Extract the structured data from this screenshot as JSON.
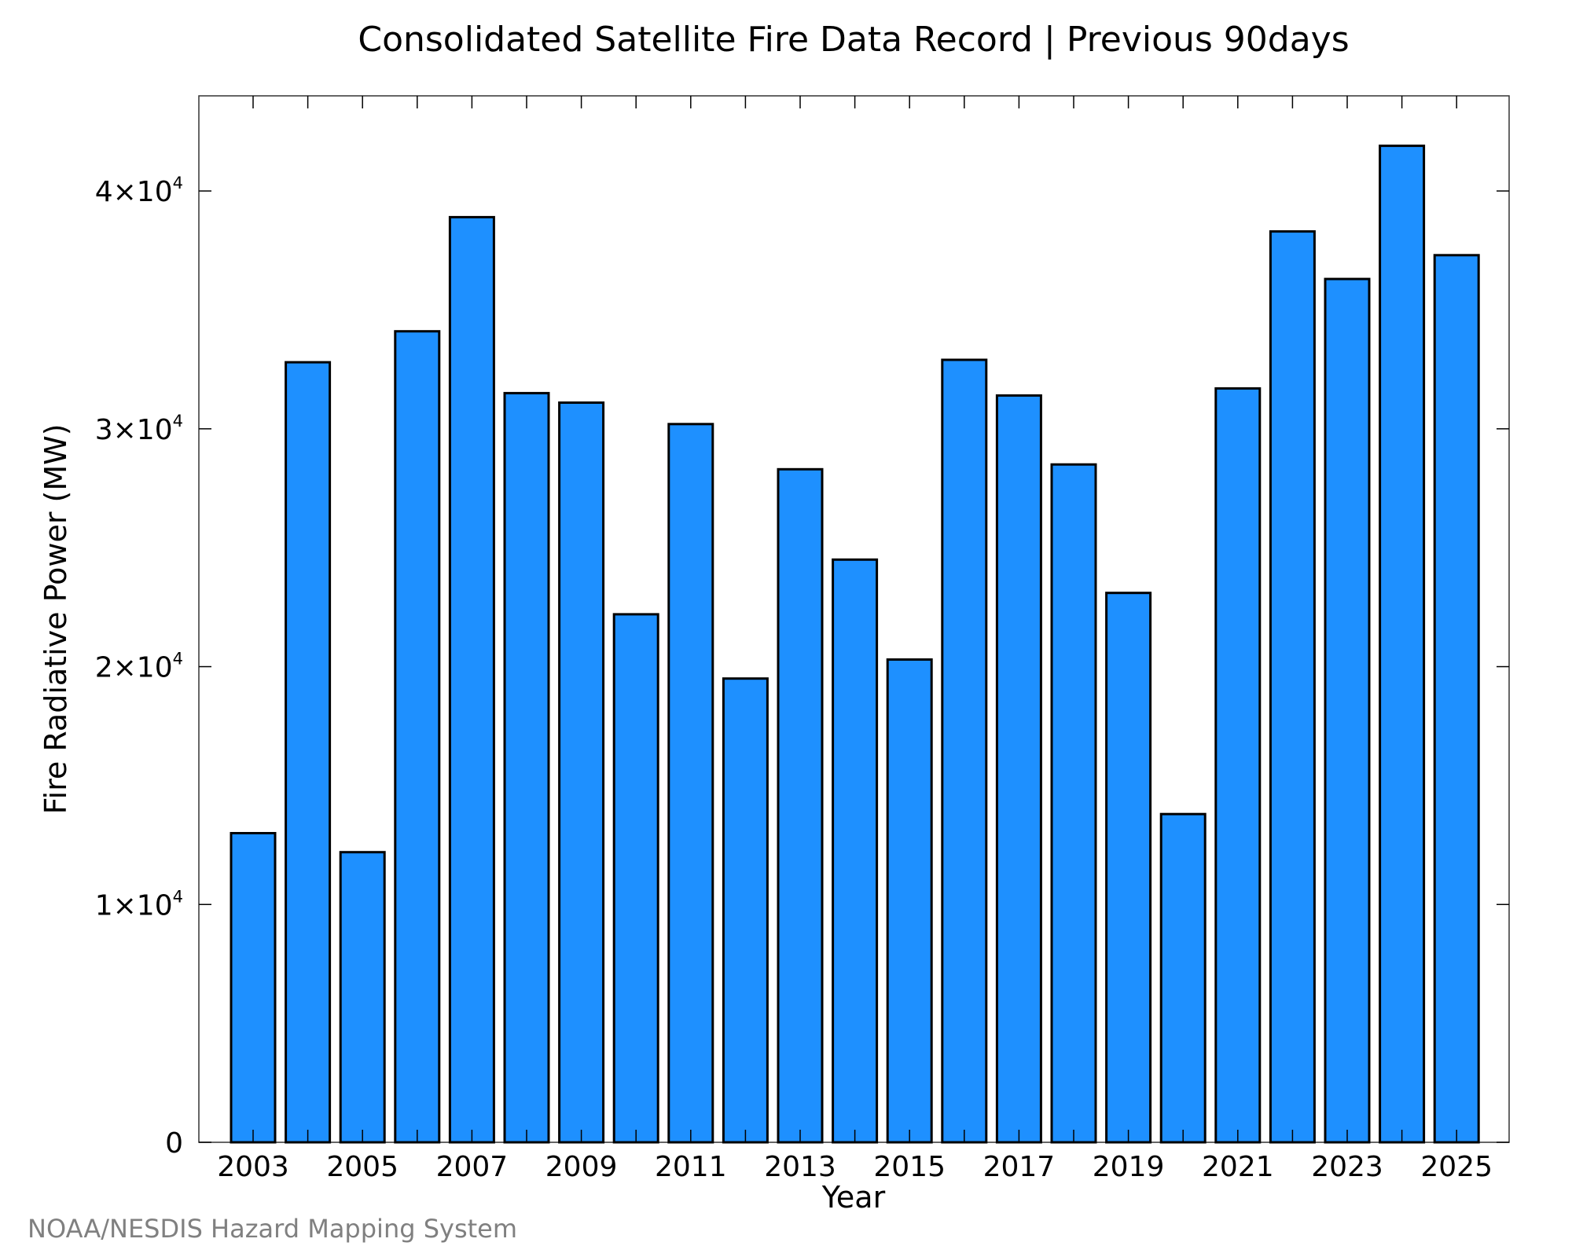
{
  "chart_data": {
    "type": "bar",
    "title": "Consolidated Satellite Fire Data Record | Previous 90days",
    "xlabel": "Year",
    "ylabel": "Fire Radiative Power (MW)",
    "ylim": [
      0,
      44000
    ],
    "bar_color": "#1e90ff",
    "edge_color": "#000000",
    "grid": false,
    "categories": [
      "2003",
      "2004",
      "2005",
      "2006",
      "2007",
      "2008",
      "2009",
      "2010",
      "2011",
      "2012",
      "2013",
      "2014",
      "2015",
      "2016",
      "2017",
      "2018",
      "2019",
      "2020",
      "2021",
      "2022",
      "2023",
      "2024",
      "2025"
    ],
    "values": [
      13000,
      32800,
      12200,
      34100,
      38900,
      31500,
      31100,
      22200,
      30200,
      19500,
      28300,
      24500,
      20300,
      32900,
      31400,
      28500,
      23100,
      13800,
      31700,
      38300,
      36300,
      41900,
      37300
    ],
    "xtick_labels": [
      "2003",
      "2005",
      "2007",
      "2009",
      "2011",
      "2013",
      "2015",
      "2017",
      "2019",
      "2021",
      "2023",
      "2025"
    ],
    "yticks": [
      {
        "value": 0,
        "mantissa": "0",
        "exponent": ""
      },
      {
        "value": 10000,
        "mantissa": "1×10",
        "exponent": "4"
      },
      {
        "value": 20000,
        "mantissa": "2×10",
        "exponent": "4"
      },
      {
        "value": 30000,
        "mantissa": "3×10",
        "exponent": "4"
      },
      {
        "value": 40000,
        "mantissa": "4×10",
        "exponent": "4"
      }
    ]
  },
  "credit": "NOAA/NESDIS Hazard Mapping System"
}
